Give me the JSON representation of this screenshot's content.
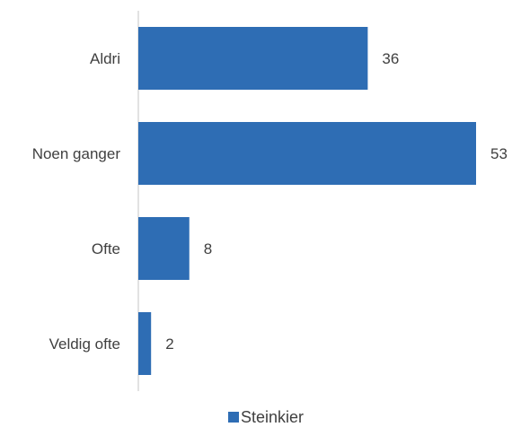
{
  "chart_data": {
    "type": "bar",
    "orientation": "horizontal",
    "categories": [
      "Aldri",
      "Noen ganger",
      "Ofte",
      "Veldig ofte"
    ],
    "series": [
      {
        "name": "Steinkier",
        "values": [
          36,
          53,
          8,
          2
        ]
      }
    ],
    "data_labels": [
      "36",
      "53",
      "8",
      "2"
    ],
    "xlim": [
      0,
      53
    ],
    "grid": false,
    "legend_position": "bottom",
    "bar_color": "#2E6DB4",
    "axis_color": "#D9D9D9"
  }
}
